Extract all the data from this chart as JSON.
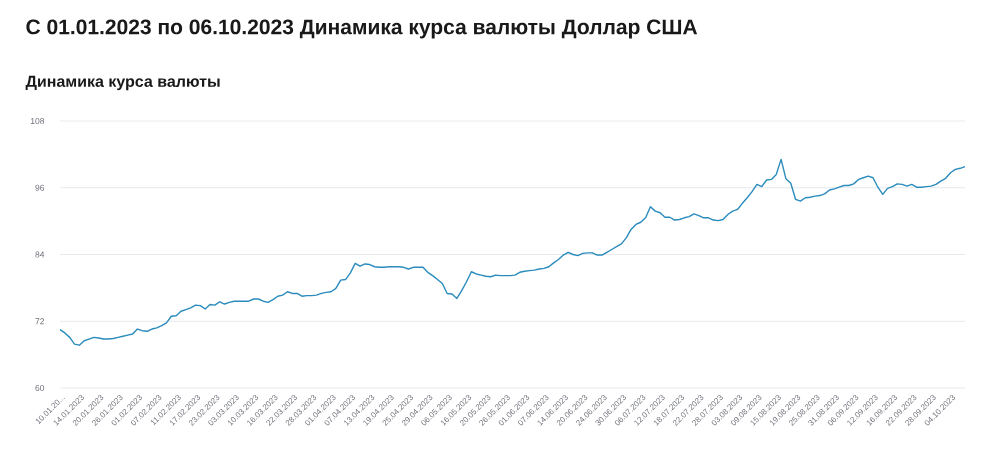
{
  "chart_data": {
    "type": "line",
    "title": "С 01.01.2023 по 06.10.2023 Динамика курса валюты Доллар США",
    "subtitle": "Динамика курса валюты",
    "categories": [
      "10.01.20...",
      null,
      null,
      null,
      "14.01.2023",
      null,
      null,
      null,
      "20.01.2023",
      null,
      null,
      null,
      "26.01.2023",
      null,
      null,
      null,
      "01.02.2023",
      null,
      null,
      null,
      "07.02.2023",
      null,
      null,
      null,
      "11.02.2023",
      null,
      null,
      null,
      "17.02.2023",
      null,
      null,
      null,
      "23.02.2023",
      null,
      null,
      null,
      "03.03.2023",
      null,
      null,
      null,
      "10.03.2023",
      null,
      null,
      null,
      "16.03.2023",
      null,
      null,
      null,
      "22.03.2023",
      null,
      null,
      null,
      "28.03.2023",
      null,
      null,
      null,
      "01.04.2023",
      null,
      null,
      null,
      "07.04.2023",
      null,
      null,
      null,
      "13.04.2023",
      null,
      null,
      null,
      "19.04.2023",
      null,
      null,
      null,
      "25.04.2023",
      null,
      null,
      null,
      "29.04.2023",
      null,
      null,
      null,
      "06.05.2023",
      null,
      null,
      null,
      "16.05.2023",
      null,
      null,
      null,
      "20.05.2023",
      null,
      null,
      null,
      "26.05.2023",
      null,
      null,
      null,
      "01.06.2023",
      null,
      null,
      null,
      "07.06.2023",
      null,
      null,
      null,
      "14.06.2023",
      null,
      null,
      null,
      "20.06.2023",
      null,
      null,
      null,
      "24.06.2023",
      null,
      null,
      null,
      "30.06.2023",
      null,
      null,
      null,
      "06.07.2023",
      null,
      null,
      null,
      "12.07.2023",
      null,
      null,
      null,
      "18.07.2023",
      null,
      null,
      null,
      "22.07.2023",
      null,
      null,
      null,
      "28.07.2023",
      null,
      null,
      null,
      "03.08.2023",
      null,
      null,
      null,
      "09.08.2023",
      null,
      null,
      null,
      "15.08.2023",
      null,
      null,
      null,
      "19.08.2023",
      null,
      null,
      null,
      "25.08.2023",
      null,
      null,
      null,
      "31.08.2023",
      null,
      null,
      null,
      "06.09.2023",
      null,
      null,
      null,
      "12.09.2023",
      null,
      null,
      null,
      "16.09.2023",
      null,
      null,
      null,
      "22.09.2023",
      null,
      null,
      null,
      "28.09.2023",
      null,
      null,
      null,
      "04.10.2023",
      null,
      null,
      null
    ],
    "values": [
      70.5,
      69.9,
      69.1,
      67.9,
      67.7,
      68.5,
      68.8,
      69.1,
      69.0,
      68.8,
      68.8,
      68.9,
      69.1,
      69.3,
      69.5,
      69.7,
      70.6,
      70.3,
      70.2,
      70.6,
      70.8,
      71.2,
      71.7,
      72.9,
      73.0,
      73.8,
      74.1,
      74.4,
      74.9,
      74.8,
      74.2,
      75.0,
      74.9,
      75.5,
      75.1,
      75.4,
      75.6,
      75.6,
      75.6,
      75.6,
      76.0,
      76.0,
      75.6,
      75.4,
      75.9,
      76.5,
      76.7,
      77.3,
      77.0,
      77.0,
      76.5,
      76.6,
      76.6,
      76.7,
      77.0,
      77.2,
      77.3,
      77.9,
      79.4,
      79.5,
      80.7,
      82.4,
      81.9,
      82.3,
      82.2,
      81.8,
      81.7,
      81.7,
      81.8,
      81.8,
      81.8,
      81.7,
      81.4,
      81.7,
      81.7,
      81.7,
      80.8,
      80.2,
      79.5,
      78.8,
      77.0,
      76.9,
      76.1,
      77.5,
      79.1,
      80.9,
      80.5,
      80.3,
      80.1,
      80.0,
      80.3,
      80.2,
      80.2,
      80.2,
      80.3,
      80.8,
      81.0,
      81.1,
      81.2,
      81.4,
      81.5,
      81.8,
      82.5,
      83.1,
      83.9,
      84.4,
      84.0,
      83.8,
      84.2,
      84.3,
      84.3,
      83.9,
      83.9,
      84.4,
      84.9,
      85.4,
      85.9,
      87.0,
      88.5,
      89.4,
      89.8,
      90.6,
      92.6,
      91.8,
      91.5,
      90.7,
      90.7,
      90.2,
      90.3,
      90.6,
      90.8,
      91.3,
      91.0,
      90.6,
      90.6,
      90.2,
      90.1,
      90.3,
      91.2,
      91.8,
      92.1,
      93.2,
      94.2,
      95.3,
      96.6,
      96.2,
      97.4,
      97.5,
      98.4,
      101.1,
      97.6,
      96.8,
      93.9,
      93.6,
      94.2,
      94.3,
      94.5,
      94.6,
      94.9,
      95.6,
      95.8,
      96.1,
      96.4,
      96.4,
      96.7,
      97.5,
      97.8,
      98.1,
      97.8,
      96.1,
      94.8,
      95.9,
      96.2,
      96.7,
      96.6,
      96.3,
      96.6,
      96.1,
      96.1,
      96.2,
      96.3,
      96.6,
      97.2,
      97.7,
      98.7,
      99.3,
      99.5,
      99.8
    ],
    "color": "#2a8bbd",
    "ylim": [
      60,
      108
    ],
    "yticks": [
      60,
      72,
      84,
      96,
      108
    ],
    "grid": "y",
    "marker": "none",
    "line_style": "solid"
  }
}
